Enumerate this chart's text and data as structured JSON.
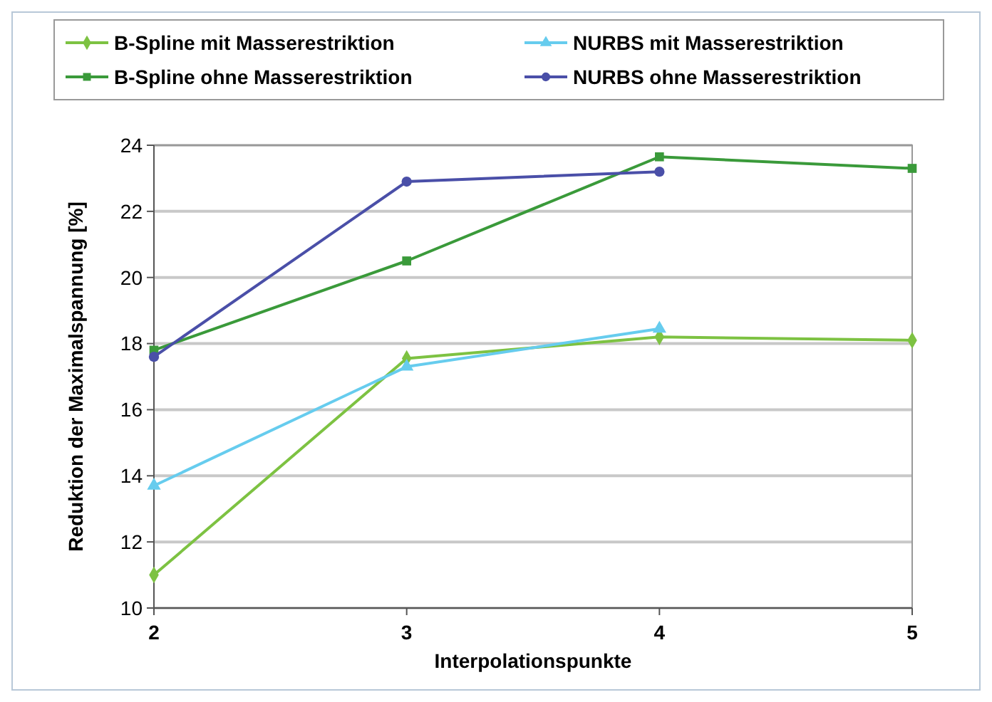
{
  "chart_data": {
    "type": "line",
    "xlabel": "Interpolationspunkte",
    "ylabel": "Reduktion der Maximalspannung [%]",
    "x": [
      2,
      3,
      4,
      5
    ],
    "xlim": [
      2,
      5
    ],
    "xticks": [
      2,
      3,
      4,
      5
    ],
    "ylim": [
      10,
      24
    ],
    "yticks": [
      10,
      12,
      14,
      16,
      18,
      20,
      22,
      24
    ],
    "grid": "y",
    "legend": "top",
    "series": [
      {
        "name": "B-Spline mit Masserestriktion",
        "color": "#7dc242",
        "marker": "diamond",
        "values": [
          11.0,
          17.55,
          18.2,
          18.1
        ]
      },
      {
        "name": "NURBS mit Masserestriktion",
        "color": "#66ccee",
        "marker": "triangle",
        "values": [
          13.7,
          17.3,
          18.45,
          null
        ]
      },
      {
        "name": "B-Spline ohne Masserestriktion",
        "color": "#3a9a3a",
        "marker": "square",
        "values": [
          17.8,
          20.5,
          23.65,
          23.3
        ]
      },
      {
        "name": "NURBS ohne Masserestriktion",
        "color": "#4a4fa8",
        "marker": "circle",
        "values": [
          17.6,
          22.9,
          23.2,
          null
        ]
      }
    ]
  }
}
